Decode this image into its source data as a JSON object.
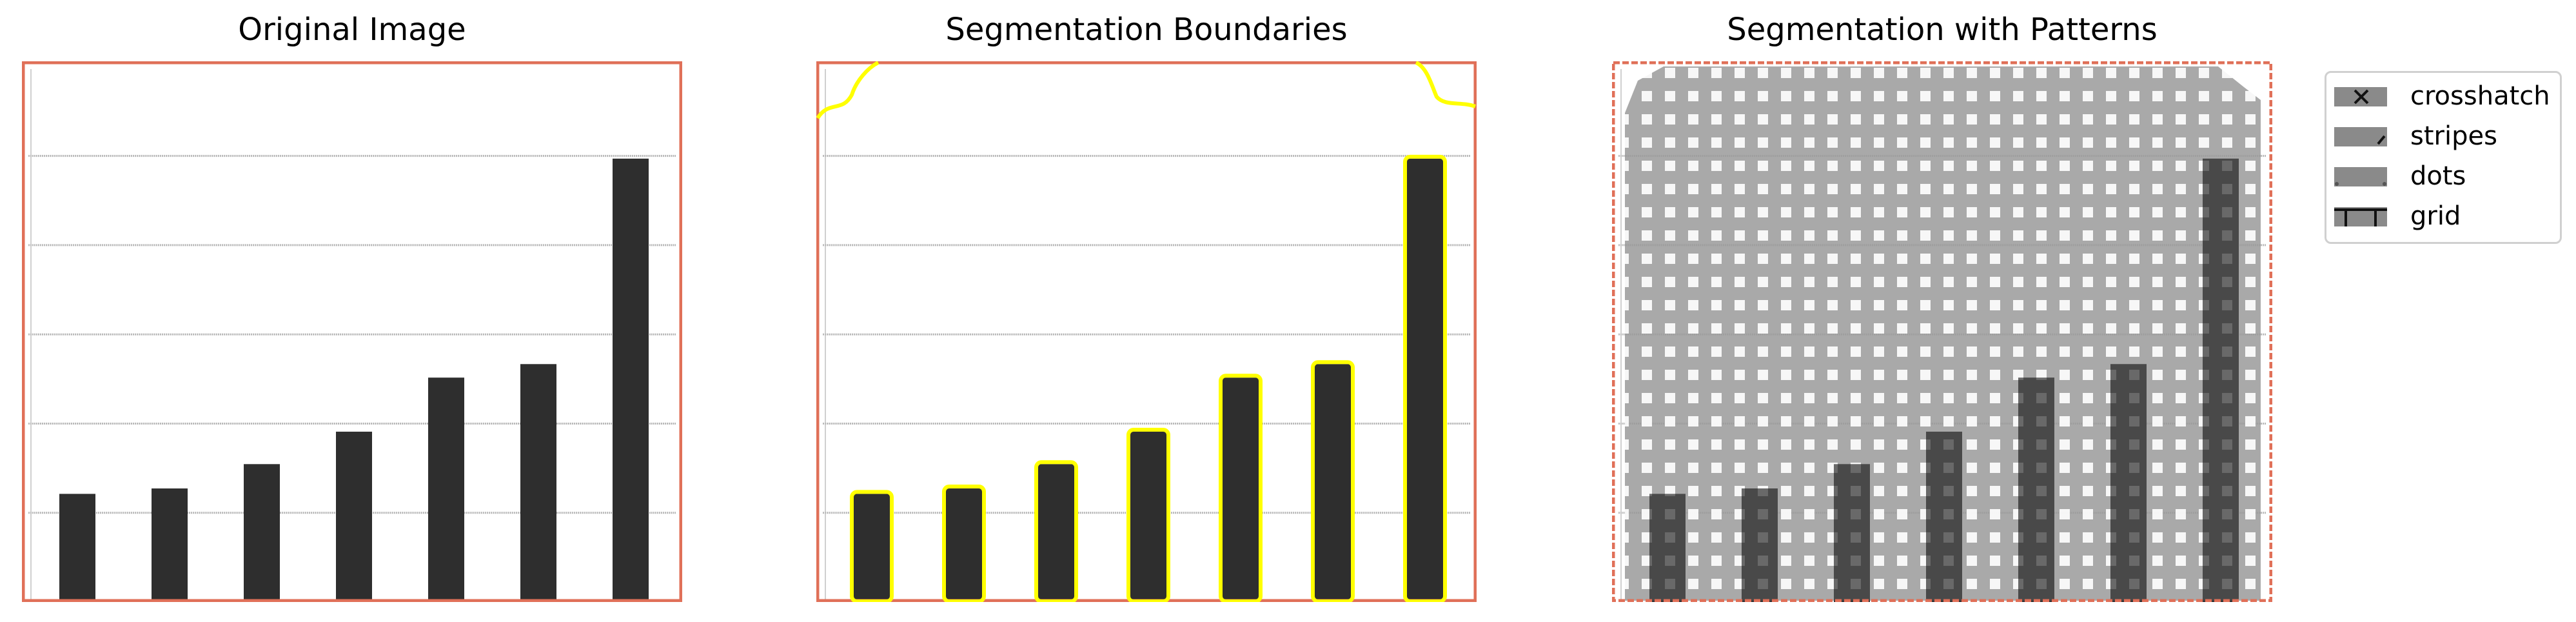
{
  "panels": [
    {
      "title": "Original Image"
    },
    {
      "title": "Segmentation Boundaries"
    },
    {
      "title": "Segmentation with Patterns"
    }
  ],
  "bars": [
    0.2,
    0.21,
    0.255,
    0.315,
    0.415,
    0.44,
    0.82
  ],
  "gridlines": [
    0.165,
    0.33,
    0.495,
    0.66,
    0.825
  ],
  "colors": {
    "frame": "#e07058",
    "bar": "#2e2e2e",
    "boundary": "#ffff00",
    "overlay": "#9a9a9a",
    "gridline": "#b8b8b8"
  },
  "legend": {
    "items": [
      {
        "label": "crosshatch",
        "icon": "crosshatch-icon"
      },
      {
        "label": "stripes",
        "icon": "stripes-icon"
      },
      {
        "label": "dots",
        "icon": "dots-icon"
      },
      {
        "label": "grid",
        "icon": "grid-icon"
      }
    ]
  }
}
